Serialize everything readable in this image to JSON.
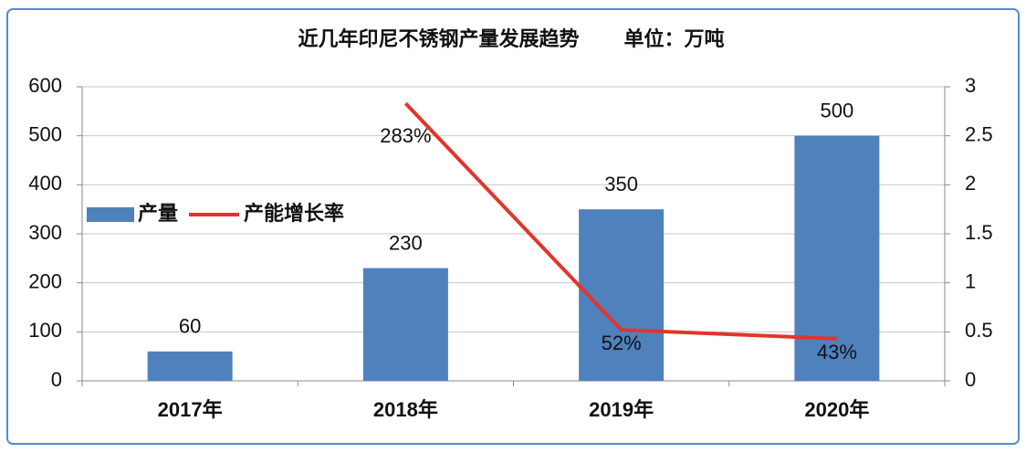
{
  "chart_data": {
    "type": "bar-line",
    "title": "近几年印尼不锈钢产量发展趋势        单位：万吨",
    "categories": [
      "2017年",
      "2018年",
      "2019年",
      "2020年"
    ],
    "series": [
      {
        "name": "产量",
        "type": "bar",
        "color": "#4f81bd",
        "values": [
          60,
          230,
          350,
          500
        ]
      },
      {
        "name": "产能增长率",
        "type": "line",
        "color": "#e0362c",
        "axis": "y2",
        "values": [
          null,
          2.83,
          0.52,
          0.43
        ],
        "value_labels": [
          null,
          "283%",
          "52%",
          "43%"
        ]
      }
    ],
    "ylim": [
      0,
      600
    ],
    "yticks": [
      0,
      100,
      200,
      300,
      400,
      500,
      600
    ],
    "y2lim": [
      0,
      3
    ],
    "y2ticks": [
      0,
      0.5,
      1,
      1.5,
      2,
      2.5,
      3
    ],
    "grid": true,
    "legend": "left"
  }
}
